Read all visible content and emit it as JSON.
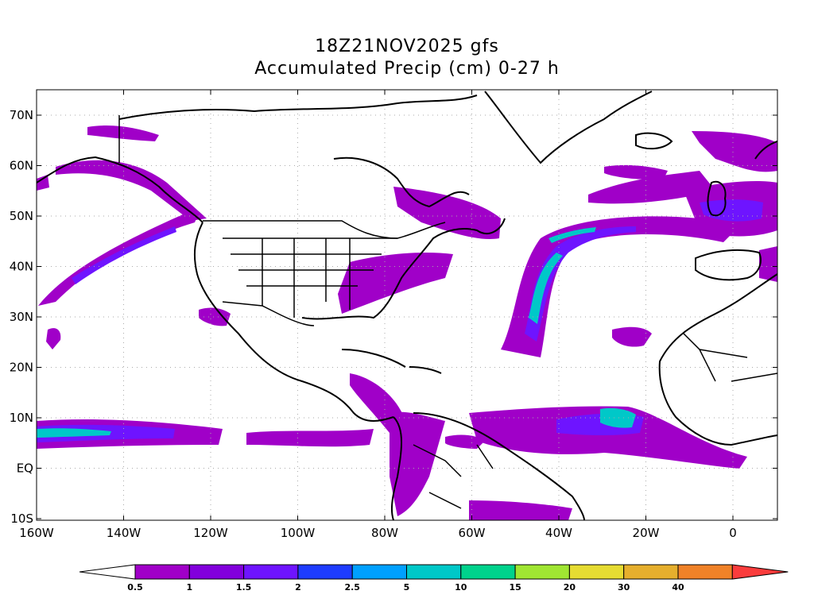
{
  "title": {
    "line1": "18Z21NOV2025 gfs",
    "line2": "Accumulated Precip (cm) 0-27 h"
  },
  "axes": {
    "lon_labels": [
      "160W",
      "140W",
      "120W",
      "100W",
      "80W",
      "60W",
      "40W",
      "20W",
      "0"
    ],
    "lat_labels": [
      "70N",
      "60N",
      "50N",
      "40N",
      "30N",
      "20N",
      "10N",
      "EQ",
      "10S"
    ]
  },
  "colorbar": {
    "labels": [
      "0.5",
      "1",
      "1.5",
      "2",
      "2.5",
      "5",
      "10",
      "15",
      "20",
      "30",
      "40"
    ],
    "colors": [
      "#a000c8",
      "#8200dc",
      "#6e14ff",
      "#1e3cff",
      "#00a0ff",
      "#00c8c8",
      "#00d28c",
      "#a0e632",
      "#e6dc32",
      "#e6af2d",
      "#f08228",
      "#fa3c3c"
    ]
  }
}
